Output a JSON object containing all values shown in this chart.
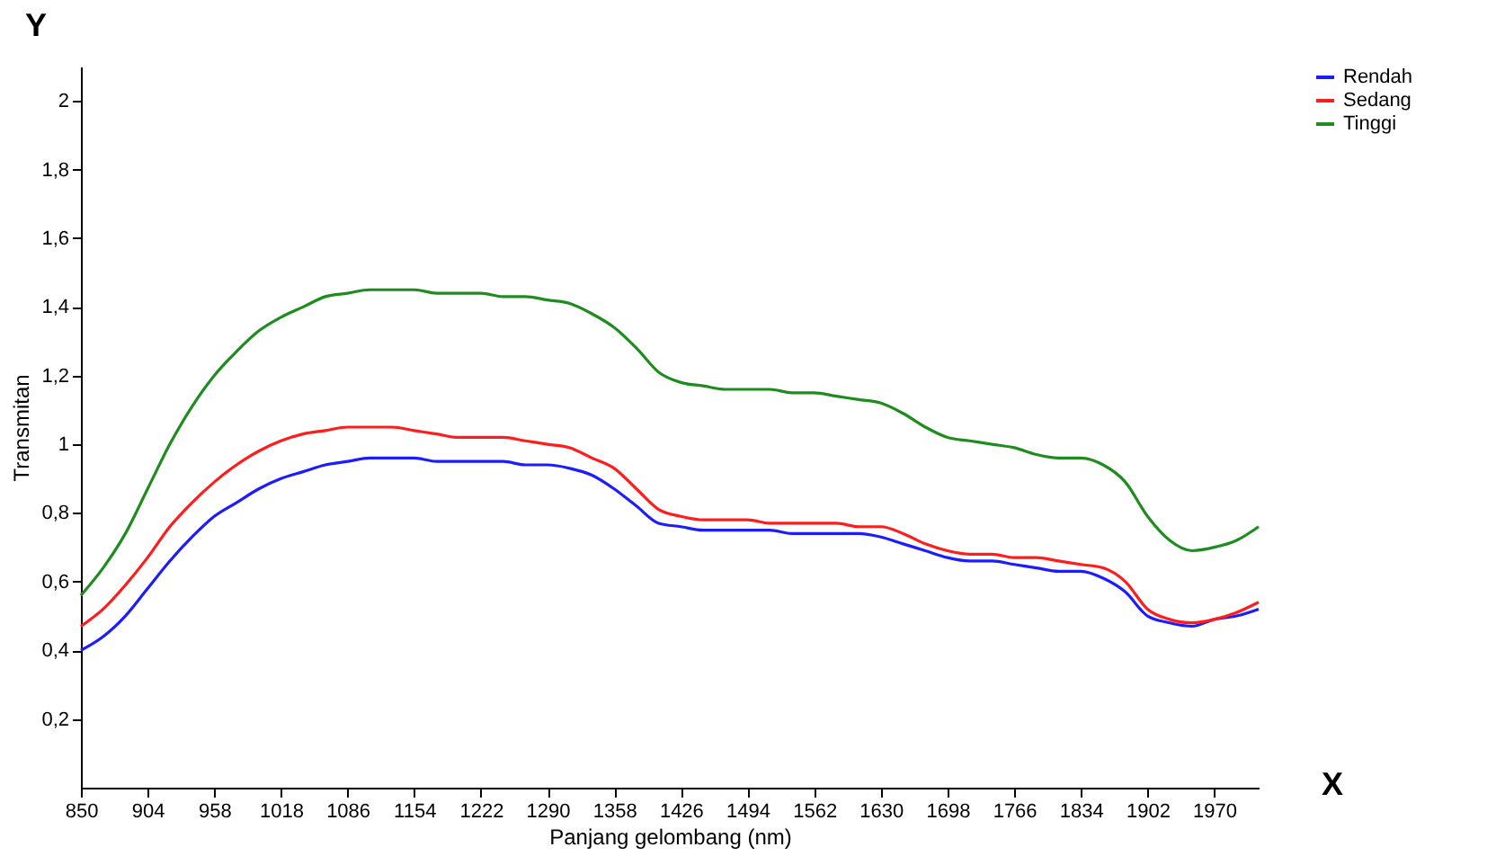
{
  "chart_data": {
    "type": "line",
    "xlabel": "Panjang gelombang (nm)",
    "ylabel": "Transmitan",
    "annotations": [
      "Y",
      "X"
    ],
    "categories": [
      "850",
      null,
      null,
      "904",
      null,
      null,
      "958",
      null,
      null,
      "1018",
      null,
      null,
      "1086",
      null,
      null,
      "1154",
      null,
      null,
      "1222",
      null,
      null,
      "1290",
      null,
      null,
      "1358",
      null,
      null,
      "1426",
      null,
      null,
      "1494",
      null,
      null,
      "1562",
      null,
      null,
      "1630",
      null,
      null,
      "1698",
      null,
      null,
      "1766",
      null,
      null,
      "1834",
      null,
      null,
      "1902",
      null,
      null,
      "1970",
      null,
      null
    ],
    "series": [
      {
        "name": "Rendah",
        "color": "#1c1cff",
        "values": [
          0.4,
          0.44,
          0.5,
          0.58,
          0.66,
          0.73,
          0.79,
          0.83,
          0.87,
          0.9,
          0.92,
          0.94,
          0.95,
          0.96,
          0.96,
          0.96,
          0.95,
          0.95,
          0.95,
          0.95,
          0.94,
          0.94,
          0.93,
          0.91,
          0.87,
          0.82,
          0.77,
          0.76,
          0.75,
          0.75,
          0.75,
          0.75,
          0.74,
          0.74,
          0.74,
          0.74,
          0.73,
          0.71,
          0.69,
          0.67,
          0.66,
          0.66,
          0.65,
          0.64,
          0.63,
          0.63,
          0.61,
          0.57,
          0.5,
          0.48,
          0.47,
          0.49,
          0.5,
          0.52
        ]
      },
      {
        "name": "Sedang",
        "color": "#ff1c1c",
        "values": [
          0.47,
          0.52,
          0.59,
          0.67,
          0.76,
          0.83,
          0.89,
          0.94,
          0.98,
          1.01,
          1.03,
          1.04,
          1.05,
          1.05,
          1.05,
          1.04,
          1.03,
          1.02,
          1.02,
          1.02,
          1.01,
          1.0,
          0.99,
          0.96,
          0.93,
          0.87,
          0.81,
          0.79,
          0.78,
          0.78,
          0.78,
          0.77,
          0.77,
          0.77,
          0.77,
          0.76,
          0.76,
          0.74,
          0.71,
          0.69,
          0.68,
          0.68,
          0.67,
          0.67,
          0.66,
          0.65,
          0.64,
          0.6,
          0.52,
          0.49,
          0.48,
          0.49,
          0.51,
          0.54
        ]
      },
      {
        "name": "Tinggi",
        "color": "#1f8c1f",
        "values": [
          0.56,
          0.64,
          0.74,
          0.87,
          1.0,
          1.11,
          1.2,
          1.27,
          1.33,
          1.37,
          1.4,
          1.43,
          1.44,
          1.45,
          1.45,
          1.45,
          1.44,
          1.44,
          1.44,
          1.43,
          1.43,
          1.42,
          1.41,
          1.38,
          1.34,
          1.28,
          1.21,
          1.18,
          1.17,
          1.16,
          1.16,
          1.16,
          1.15,
          1.15,
          1.14,
          1.13,
          1.12,
          1.09,
          1.05,
          1.02,
          1.01,
          1.0,
          0.99,
          0.97,
          0.96,
          0.96,
          0.94,
          0.89,
          0.79,
          0.72,
          0.69,
          0.7,
          0.72,
          0.76
        ]
      }
    ],
    "ylim": [
      0,
      2.1
    ],
    "yticks": [
      {
        "value": 0.2,
        "label": "0,2"
      },
      {
        "value": 0.4,
        "label": "0,4"
      },
      {
        "value": 0.6,
        "label": "0,6"
      },
      {
        "value": 0.8,
        "label": "0,8"
      },
      {
        "value": 1,
        "label": "1"
      },
      {
        "value": 1.2,
        "label": "1,2"
      },
      {
        "value": 1.4,
        "label": "1,4"
      },
      {
        "value": 1.6,
        "label": "1,6"
      },
      {
        "value": 1.8,
        "label": "1,8"
      },
      {
        "value": 2,
        "label": "2"
      }
    ],
    "grid": false,
    "legend": "right",
    "marker": "none",
    "line_style": "solid"
  }
}
